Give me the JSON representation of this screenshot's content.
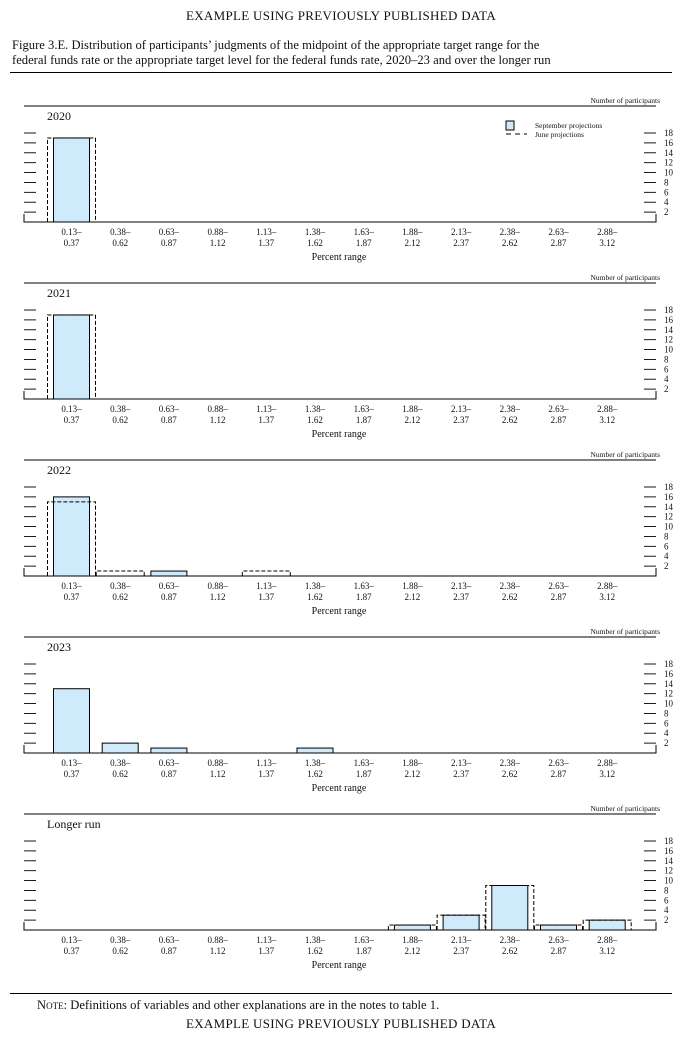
{
  "header": {
    "banner": "EXAMPLE USING PREVIOUSLY PUBLISHED DATA"
  },
  "figure": {
    "title_line1": "Figure 3.E. Distribution of participants’ judgments of the midpoint of the appropriate target range for the",
    "title_line2": "federal funds rate or the appropriate target level for the federal funds rate, 2020–23 and over the longer run"
  },
  "footer": {
    "note_label": "Note:",
    "note_text": "Definitions of variables and other explanations are in the notes to table 1.",
    "banner": "EXAMPLE USING PREVIOUSLY PUBLISHED DATA"
  },
  "colors": {
    "bar_fill": "#cfeafb",
    "stroke": "#000000"
  },
  "chart_data": {
    "type": "bar",
    "ylabel": "Number of participants",
    "xlabel": "Percent range",
    "ylim": [
      0,
      18
    ],
    "yticks": [
      2,
      4,
      6,
      8,
      10,
      12,
      14,
      16,
      18
    ],
    "categories": [
      [
        "0.13–",
        "0.37"
      ],
      [
        "0.38–",
        "0.62"
      ],
      [
        "0.63–",
        "0.87"
      ],
      [
        "0.88–",
        "1.12"
      ],
      [
        "1.13–",
        "1.37"
      ],
      [
        "1.38–",
        "1.62"
      ],
      [
        "1.63–",
        "1.87"
      ],
      [
        "1.88–",
        "2.12"
      ],
      [
        "2.13–",
        "2.37"
      ],
      [
        "2.38–",
        "2.62"
      ],
      [
        "2.63–",
        "2.87"
      ],
      [
        "2.88–",
        "3.12"
      ]
    ],
    "legend": {
      "placement": "top-right",
      "september_label": "September projections",
      "june_label": "June projections"
    },
    "panels": [
      {
        "label": "2020",
        "september": [
          17,
          0,
          0,
          0,
          0,
          0,
          0,
          0,
          0,
          0,
          0,
          0
        ],
        "june": [
          17,
          0,
          0,
          0,
          0,
          0,
          0,
          0,
          0,
          0,
          0,
          0
        ]
      },
      {
        "label": "2021",
        "september": [
          17,
          0,
          0,
          0,
          0,
          0,
          0,
          0,
          0,
          0,
          0,
          0
        ],
        "june": [
          17,
          0,
          0,
          0,
          0,
          0,
          0,
          0,
          0,
          0,
          0,
          0
        ]
      },
      {
        "label": "2022",
        "september": [
          16,
          0,
          1,
          0,
          0,
          0,
          0,
          0,
          0,
          0,
          0,
          0
        ],
        "june": [
          15,
          1,
          0,
          0,
          1,
          0,
          0,
          0,
          0,
          0,
          0,
          0
        ]
      },
      {
        "label": "2023",
        "september": [
          13,
          2,
          1,
          0,
          0,
          1,
          0,
          0,
          0,
          0,
          0,
          0
        ],
        "june": []
      },
      {
        "label": "Longer run",
        "september": [
          0,
          0,
          0,
          0,
          0,
          0,
          0,
          1,
          3,
          9,
          1,
          2
        ],
        "june": [
          0,
          0,
          0,
          0,
          0,
          0,
          0,
          1,
          3,
          9,
          1,
          2
        ]
      }
    ]
  }
}
